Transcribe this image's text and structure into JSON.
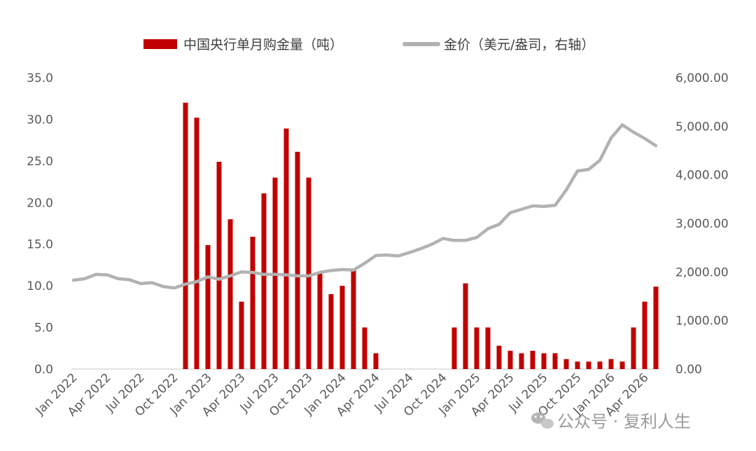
{
  "chart_data": {
    "type": "bar",
    "x": [
      "Jan 2022",
      "Feb 2022",
      "Mar 2022",
      "Apr 2022",
      "May 2022",
      "Jun 2022",
      "Jul 2022",
      "Aug 2022",
      "Sep 2022",
      "Oct 2022",
      "Nov 2022",
      "Dec 2022",
      "Jan 2023",
      "Feb 2023",
      "Mar 2023",
      "Apr 2023",
      "May 2023",
      "Jun 2023",
      "Jul 2023",
      "Aug 2023",
      "Sep 2023",
      "Oct 2023",
      "Nov 2023",
      "Dec 2023",
      "Jan 2024",
      "Feb 2024",
      "Mar 2024",
      "Apr 2024",
      "May 2024",
      "Jun 2024",
      "Jul 2024",
      "Aug 2024",
      "Sep 2024",
      "Oct 2024",
      "Nov 2024",
      "Dec 2024",
      "Jan 2025",
      "Feb 2025",
      "Mar 2025",
      "Apr 2025",
      "May 2025",
      "Jun 2025",
      "Jul 2025",
      "Aug 2025",
      "Sep 2025",
      "Oct 2025",
      "Nov 2025",
      "Dec 2025",
      "Jan 2026",
      "Feb 2026",
      "Mar 2026",
      "Apr 2026",
      "May 2026"
    ],
    "x_tick_labels": [
      "Jan 2022",
      "Apr 2022",
      "Jul 2022",
      "Oct 2022",
      "Jan 2023",
      "Apr 2023",
      "Jul 2023",
      "Oct 2023",
      "Jan 2024",
      "Apr 2024",
      "Jul 2024",
      "Oct 2024",
      "Jan 2025",
      "Apr 2025",
      "Jul 2025",
      "Oct 2025",
      "Jan 2026",
      "Apr 2026"
    ],
    "series": [
      {
        "name": "中国央行单月购金量（吨）",
        "type": "bar",
        "axis": "left",
        "color": "#c00000",
        "values": [
          0,
          0,
          0,
          0,
          0,
          0,
          0,
          0,
          0,
          0,
          32,
          30.2,
          14.9,
          24.9,
          18,
          8.1,
          15.9,
          21.1,
          23,
          28.9,
          26.1,
          23,
          11.5,
          9,
          10,
          12,
          5,
          1.9,
          0,
          0,
          0,
          0,
          0,
          0,
          5,
          10.3,
          5,
          5,
          2.8,
          2.2,
          1.9,
          2.2,
          1.9,
          1.9,
          1.2,
          0.9,
          0.9,
          0.9,
          1.2,
          0.9,
          5,
          8.1,
          9.9
        ]
      },
      {
        "name": "金价（美元/盎司，右轴）",
        "type": "line",
        "axis": "right",
        "color": "#b2b2b2",
        "values": [
          1830,
          1860,
          1950,
          1940,
          1860,
          1840,
          1760,
          1780,
          1700,
          1670,
          1750,
          1800,
          1900,
          1850,
          1920,
          2000,
          1990,
          1950,
          1950,
          1940,
          1920,
          1920,
          1990,
          2030,
          2050,
          2040,
          2180,
          2340,
          2350,
          2330,
          2400,
          2480,
          2570,
          2690,
          2650,
          2650,
          2710,
          2890,
          2980,
          3220,
          3290,
          3360,
          3350,
          3370,
          3690,
          4080,
          4110,
          4300,
          4760,
          5030,
          4880,
          4750,
          4600
        ]
      }
    ],
    "y_left": {
      "ticks": [
        "0.0",
        "5.0",
        "10.0",
        "15.0",
        "20.0",
        "25.0",
        "30.0",
        "35.0"
      ],
      "min": 0,
      "max": 35
    },
    "y_right": {
      "ticks": [
        "0.00",
        "1,000.00",
        "2,000.00",
        "3,000.00",
        "4,000.00",
        "5,000.00",
        "6,000.00"
      ],
      "min": 0,
      "max": 6000
    },
    "legend_position": "top",
    "grid": false
  },
  "watermark": {
    "text": "公众号 · 复利人生",
    "icon": "wechat-icon"
  }
}
